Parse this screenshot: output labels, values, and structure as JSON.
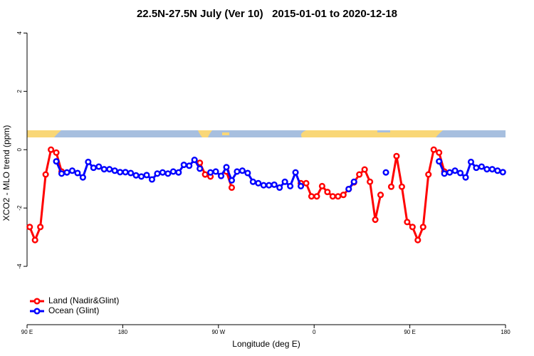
{
  "chart_data": {
    "type": "line",
    "title": "22.5N-27.5N July (Ver 10)   2015-01-01 to 2020-12-18",
    "xlabel": "Longitude (deg E)",
    "ylabel": "XCO2 - MLO trend (ppm)",
    "xlim": [
      90,
      540
    ],
    "ylim": [
      -6,
      4.4
    ],
    "xticks": [
      {
        "value": 90,
        "label": "90 E"
      },
      180,
      {
        "value": 270,
        "label": "90 W"
      },
      {
        "value": 360,
        "label": "0"
      },
      {
        "value": 450,
        "label": "90 E"
      },
      {
        "value": 540,
        "label": "180"
      }
    ],
    "yticks": [
      -4,
      -2,
      0,
      2,
      4
    ],
    "x": [
      92.5,
      97.5,
      102.5,
      107.5,
      112.5,
      117.5,
      122.5,
      127.5,
      132.5,
      137.5,
      142.5,
      147.5,
      152.5,
      157.5,
      162.5,
      167.5,
      172.5,
      177.5,
      182.5,
      187.5,
      192.5,
      197.5,
      202.5,
      207.5,
      212.5,
      217.5,
      222.5,
      227.5,
      232.5,
      237.5,
      242.5,
      247.5,
      252.5,
      257.5,
      262.5,
      267.5,
      272.5,
      277.5,
      282.5,
      287.5,
      292.5,
      297.5,
      302.5,
      307.5,
      312.5,
      317.5,
      322.5,
      327.5,
      332.5,
      337.5,
      342.5,
      347.5,
      352.5,
      357.5,
      362.5,
      367.5,
      372.5,
      377.5,
      382.5,
      387.5,
      392.5,
      397.5,
      402.5,
      407.5,
      412.5,
      417.5,
      422.5,
      427.5,
      432.5,
      437.5,
      442.5,
      447.5,
      452.5,
      457.5,
      462.5,
      467.5,
      472.5,
      477.5,
      482.5,
      487.5,
      492.5,
      497.5,
      502.5,
      507.5,
      512.5,
      517.5,
      522.5,
      527.5,
      532.5,
      537.5
    ],
    "series": [
      {
        "name": "Land (Nadir&Glint)",
        "color": "#ff0000",
        "values": [
          -2.65,
          -3.1,
          -2.65,
          -0.85,
          0,
          -0.1,
          -0.75,
          null,
          null,
          null,
          null,
          null,
          null,
          null,
          null,
          null,
          null,
          null,
          null,
          null,
          null,
          null,
          null,
          null,
          null,
          null,
          null,
          null,
          null,
          null,
          null,
          null,
          -0.45,
          -0.85,
          -0.92,
          null,
          null,
          -0.75,
          -1.3,
          null,
          null,
          null,
          null,
          null,
          null,
          null,
          null,
          null,
          null,
          null,
          null,
          -1.15,
          -1.15,
          -1.6,
          -1.6,
          -1.25,
          -1.45,
          -1.6,
          -1.6,
          -1.55,
          -1.35,
          -1.12,
          -0.85,
          -0.68,
          -1.1,
          -2.4,
          -1.55,
          null,
          -1.27,
          -0.22,
          -1.27,
          -2.48,
          -2.65,
          -3.1,
          -2.65,
          -0.85,
          0,
          -0.1,
          -0.75,
          null,
          null,
          null,
          null,
          null,
          null,
          null,
          null,
          null,
          null,
          null
        ]
      },
      {
        "name": "Ocean (Glint)",
        "color": "#0000ff",
        "values": [
          null,
          null,
          null,
          null,
          null,
          -0.4,
          -0.82,
          -0.78,
          -0.72,
          -0.8,
          -0.95,
          -0.42,
          -0.62,
          -0.58,
          -0.67,
          -0.67,
          -0.72,
          -0.77,
          -0.77,
          -0.8,
          -0.88,
          -0.92,
          -0.87,
          -1.02,
          -0.82,
          -0.78,
          -0.82,
          -0.75,
          -0.78,
          -0.52,
          -0.55,
          -0.35,
          -0.65,
          null,
          -0.78,
          -0.75,
          -0.9,
          -0.6,
          -1.05,
          -0.75,
          -0.72,
          -0.8,
          -1.1,
          -1.15,
          -1.22,
          -1.22,
          -1.2,
          -1.3,
          -1.1,
          -1.25,
          -0.78,
          -1.25,
          null,
          null,
          null,
          null,
          null,
          null,
          null,
          null,
          -1.35,
          -1.1,
          null,
          null,
          null,
          null,
          null,
          -0.78,
          null,
          null,
          null,
          null,
          null,
          null,
          null,
          null,
          null,
          -0.4,
          -0.82,
          -0.78,
          -0.72,
          -0.8,
          -0.95,
          -0.42,
          -0.62,
          -0.58,
          -0.67,
          -0.67,
          -0.72,
          -0.77
        ]
      }
    ],
    "legend": "bottom-left"
  }
}
